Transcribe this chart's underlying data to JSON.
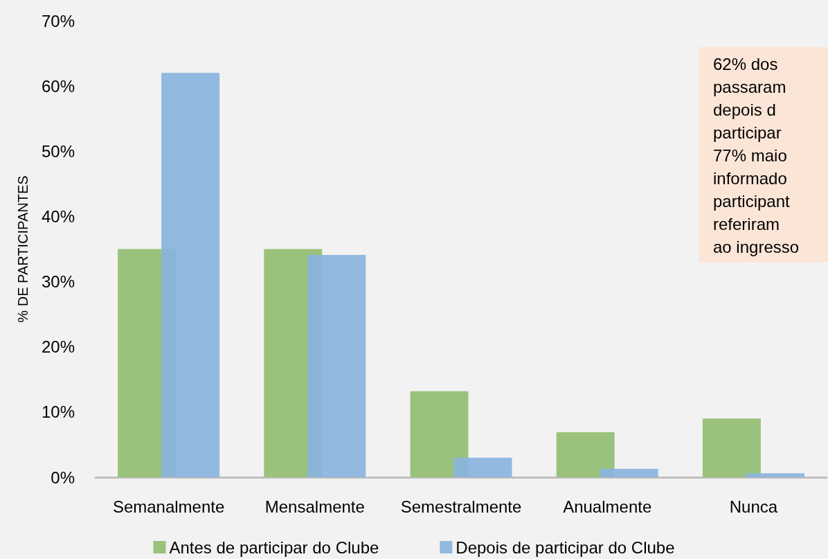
{
  "chart_data": {
    "type": "bar",
    "ylabel": "% DE PARTICIPANTES",
    "categories": [
      "Semanalmente",
      "Mensalmente",
      "Semestralmente",
      "Anualmente",
      "Nunca"
    ],
    "series": [
      {
        "name": "Antes de participar do Clube",
        "color": "#9bc27c",
        "values": [
          35,
          35,
          13.2,
          6.9,
          9.0
        ]
      },
      {
        "name": "Depois de participar do Clube",
        "color": "#8ab4de",
        "values": [
          62,
          34.1,
          3.0,
          1.3,
          0.6
        ]
      }
    ],
    "ylim": [
      0,
      70
    ],
    "yticks": [
      {
        "value": 0,
        "label": "0%"
      },
      {
        "value": 10,
        "label": "10%"
      },
      {
        "value": 20,
        "label": "20%"
      },
      {
        "value": 30,
        "label": "30%"
      },
      {
        "value": 40,
        "label": "40%"
      },
      {
        "value": 50,
        "label": "50%"
      },
      {
        "value": 60,
        "label": "60%"
      },
      {
        "value": 70,
        "label": "70%"
      }
    ],
    "grid": false,
    "legend": "bottom",
    "annotations": [
      "62% dos\npassaram\ndepois d\nparticipar\n77% maio\ninformado\nparticipant\nreferiram\nao ingresso"
    ]
  }
}
